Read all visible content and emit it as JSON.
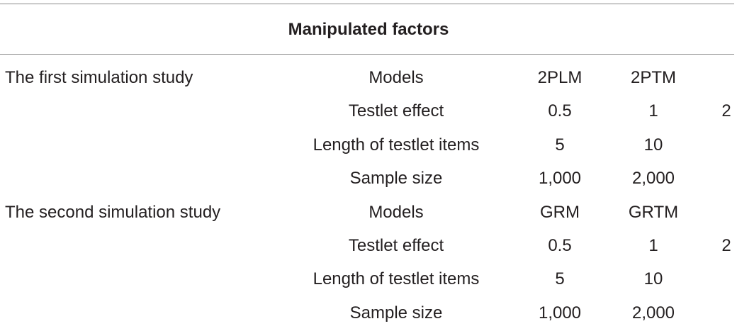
{
  "header": {
    "title": "Manipulated factors"
  },
  "rows": [
    {
      "study": "The first simulation study",
      "factor": "Models",
      "v1": "2PLM",
      "v2": "2PTM",
      "v3": ""
    },
    {
      "study": "",
      "factor": "Testlet effect",
      "v1": "0.5",
      "v2": "1",
      "v3": "2"
    },
    {
      "study": "",
      "factor": "Length of testlet items",
      "v1": "5",
      "v2": "10",
      "v3": ""
    },
    {
      "study": "",
      "factor": "Sample size",
      "v1": "1,000",
      "v2": "2,000",
      "v3": ""
    },
    {
      "study": "The second simulation study",
      "factor": "Models",
      "v1": "GRM",
      "v2": "GRTM",
      "v3": ""
    },
    {
      "study": "",
      "factor": "Testlet effect",
      "v1": "0.5",
      "v2": "1",
      "v3": "2"
    },
    {
      "study": "",
      "factor": "Length of testlet items",
      "v1": "5",
      "v2": "10",
      "v3": ""
    },
    {
      "study": "",
      "factor": "Sample size",
      "v1": "1,000",
      "v2": "2,000",
      "v3": ""
    }
  ]
}
